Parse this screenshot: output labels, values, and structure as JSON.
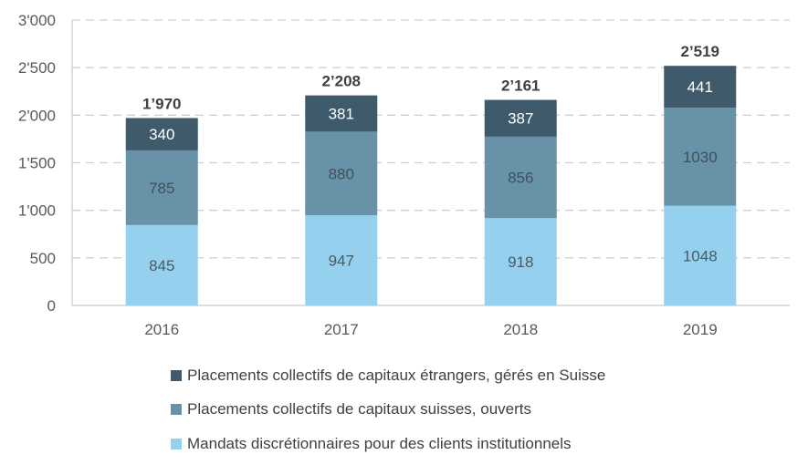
{
  "chart_data": {
    "type": "bar",
    "stacked": true,
    "title": "",
    "xlabel": "",
    "ylabel": "",
    "categories": [
      "2016",
      "2017",
      "2018",
      "2019"
    ],
    "series": [
      {
        "name": "Mandats discrétionnaires pour des clients institutionnels",
        "color": "#95D1EE",
        "label_color": "#4a5a66",
        "values": [
          845,
          947,
          918,
          1048
        ]
      },
      {
        "name": "Placements collectifs de capitaux suisses, ouverts",
        "color": "#6892A8",
        "label_color": "#3f505c",
        "values": [
          785,
          880,
          856,
          1030
        ]
      },
      {
        "name": "Placements collectifs de capitaux étrangers, gérés en Suisse",
        "color": "#3E5A6B",
        "label_color": "#ffffff",
        "values": [
          340,
          381,
          387,
          441
        ]
      }
    ],
    "totals": [
      "1’970",
      "2’208",
      "2’161",
      "2’519"
    ],
    "ylim": [
      0,
      3000
    ],
    "yticks": [
      0,
      500,
      1000,
      1500,
      2000,
      2500,
      3000
    ],
    "ytick_labels": [
      "0",
      "500",
      "1'000",
      "1'500",
      "2'000",
      "2'500",
      "3'000"
    ],
    "grid": true,
    "legend_position": "bottom"
  },
  "legend": [
    {
      "label": "Placements collectifs de capitaux étrangers, gérés en Suisse",
      "color": "#3E5A6B"
    },
    {
      "label": "Placements collectifs de capitaux suisses, ouverts",
      "color": "#6892A8"
    },
    {
      "label": "Mandats discrétionnaires pour des clients institutionnels",
      "color": "#95D1EE"
    }
  ]
}
